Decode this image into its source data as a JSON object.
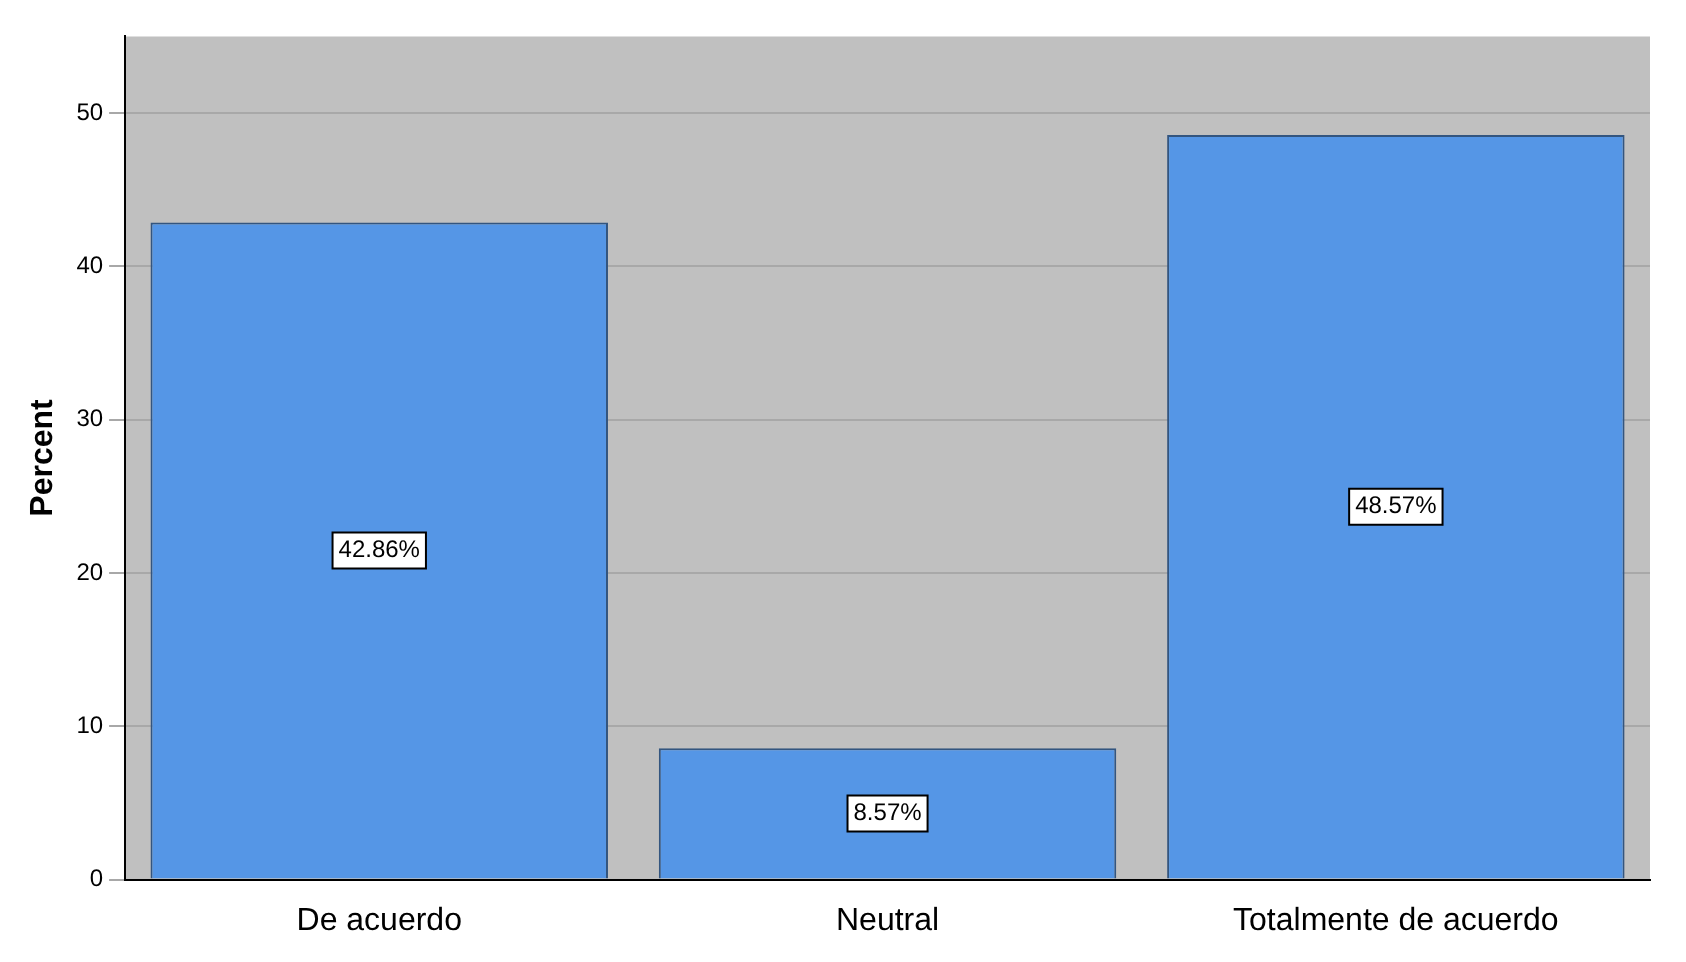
{
  "chart_data": {
    "type": "bar",
    "ylabel": "Percent",
    "categories": [
      "De acuerdo",
      "Neutral",
      "Totalmente de acuerdo"
    ],
    "values": [
      42.86,
      8.57,
      48.57
    ],
    "value_labels": [
      "42.86%",
      "8.57%",
      "48.57%"
    ],
    "color": "#5596e6",
    "ylim": [
      0,
      55
    ],
    "yticks": [
      0,
      10,
      20,
      30,
      40,
      50
    ],
    "grid": "y",
    "legend": false
  }
}
